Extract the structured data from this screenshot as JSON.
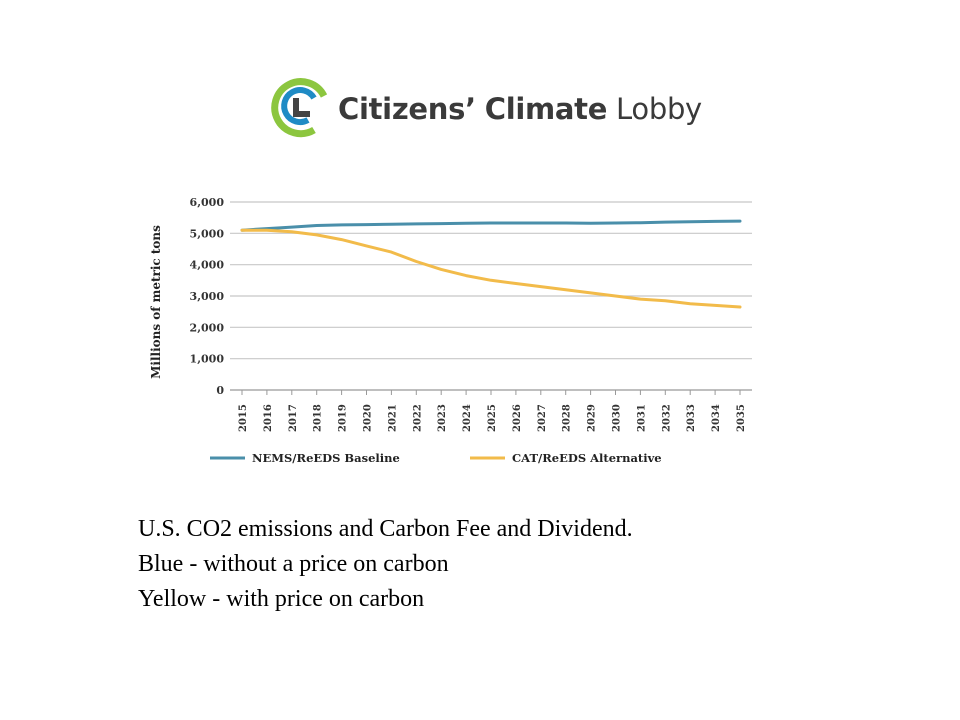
{
  "logo": {
    "word1": "Citizens’",
    "word2": "Climate",
    "word3": "Lobby"
  },
  "colors": {
    "baseline": "#4a8faa",
    "alternative": "#f2bb4a",
    "logo_blue": "#1f8bc5",
    "logo_green": "#8cc63f",
    "logo_dark": "#444444"
  },
  "chart_data": {
    "type": "line",
    "x": [
      2015,
      2016,
      2017,
      2018,
      2019,
      2020,
      2021,
      2022,
      2023,
      2024,
      2025,
      2026,
      2027,
      2028,
      2029,
      2030,
      2031,
      2032,
      2033,
      2034,
      2035
    ],
    "x_tick_labels": [
      "2015",
      "2016",
      "2017",
      "2018",
      "2019",
      "2020",
      "2021",
      "2022",
      "2023",
      "2024",
      "2025",
      "2026",
      "2027",
      "2028",
      "2029",
      "2030",
      "2031",
      "2032",
      "2033",
      "2034",
      "2035"
    ],
    "y_tick_labels": [
      "6,000",
      "5,000",
      "4,000",
      "3,000",
      "2,000",
      "1,000",
      "0"
    ],
    "ylabel": "Millions of metric tons",
    "ylim": [
      0,
      6000
    ],
    "grid": true,
    "legend_position": "bottom",
    "series": [
      {
        "name": "NEMS/ReEDS Baseline",
        "values": [
          5100,
          5150,
          5200,
          5250,
          5270,
          5280,
          5290,
          5300,
          5310,
          5320,
          5330,
          5330,
          5330,
          5330,
          5320,
          5330,
          5340,
          5360,
          5370,
          5380,
          5390
        ]
      },
      {
        "name": "CAT/ReEDS Alternative",
        "values": [
          5100,
          5100,
          5050,
          4950,
          4800,
          4600,
          4400,
          4100,
          3850,
          3650,
          3500,
          3400,
          3300,
          3200,
          3100,
          3000,
          2900,
          2850,
          2750,
          2700,
          2650
        ]
      }
    ]
  },
  "caption": {
    "line1": "U.S. CO2 emissions  and Carbon Fee and Dividend.",
    "line2": "Blue - without a price on carbon",
    "line3": "Yellow - with price on carbon"
  }
}
